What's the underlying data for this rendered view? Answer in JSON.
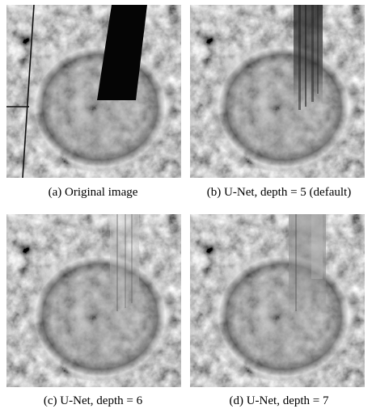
{
  "panels": [
    {
      "id": "a",
      "caption": "(a) Original image",
      "artifact": "black-mask"
    },
    {
      "id": "b",
      "caption": "(b) U-Net, depth = 5 (default)",
      "artifact": "dark-streaks"
    },
    {
      "id": "c",
      "caption": "(c) U-Net, depth = 6",
      "artifact": "light-streaks"
    },
    {
      "id": "d",
      "caption": "(d) U-Net, depth = 7",
      "artifact": "gray-band"
    }
  ]
}
